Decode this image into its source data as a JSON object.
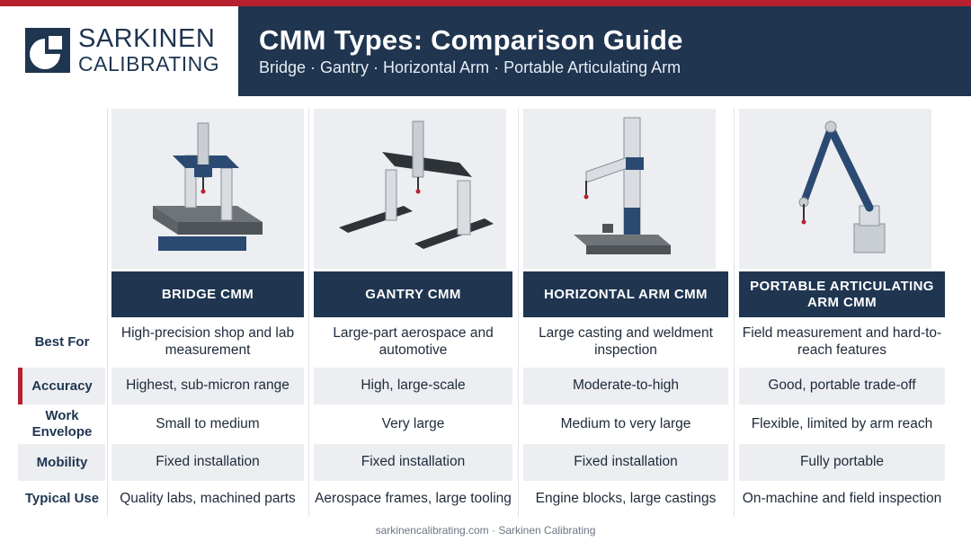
{
  "brand": {
    "name_line1": "SARKINEN",
    "name_line2": "CALIBRATING",
    "colors": {
      "navy": "#1f3550",
      "red": "#b7202e",
      "panel": "#eceef1"
    }
  },
  "header": {
    "title": "CMM Types: Comparison Guide",
    "subtitle": "Bridge · Gantry · Horizontal Arm · Portable Articulating Arm"
  },
  "columns": [
    {
      "title": "BRIDGE CMM",
      "image_icon": "bridge-cmm-illustration"
    },
    {
      "title": "GANTRY CMM",
      "image_icon": "gantry-cmm-illustration"
    },
    {
      "title": "HORIZONTAL ARM CMM",
      "image_icon": "horizontal-arm-cmm-illustration"
    },
    {
      "title": "PORTABLE ARTICULATING ARM CMM",
      "image_icon": "portable-arm-cmm-illustration"
    }
  ],
  "rows": [
    {
      "label": "Best For",
      "shaded": false,
      "cells": [
        "High-precision shop and lab measurement",
        "Large-part aerospace and automotive",
        "Large casting and weldment inspection",
        "Field measurement and hard-to-reach features"
      ]
    },
    {
      "label": "Accuracy",
      "shaded": true,
      "highlight": true,
      "cells": [
        "Highest, sub-micron range",
        "High, large-scale",
        "Moderate-to-high",
        "Good, portable trade-off"
      ]
    },
    {
      "label": "Work Envelope",
      "shaded": false,
      "cells": [
        "Small to medium",
        "Very large",
        "Medium to very large",
        "Flexible, limited by arm reach"
      ]
    },
    {
      "label": "Mobility",
      "shaded": true,
      "cells": [
        "Fixed installation",
        "Fixed installation",
        "Fixed installation",
        "Fully portable"
      ]
    },
    {
      "label": "Typical Use",
      "shaded": false,
      "cells": [
        "Quality labs, machined parts",
        "Aerospace frames, large tooling",
        "Engine blocks, large castings",
        "On-machine and field inspection"
      ]
    }
  ],
  "footer": {
    "text": "sarkinencalibrating.com · Sarkinen Calibrating"
  }
}
